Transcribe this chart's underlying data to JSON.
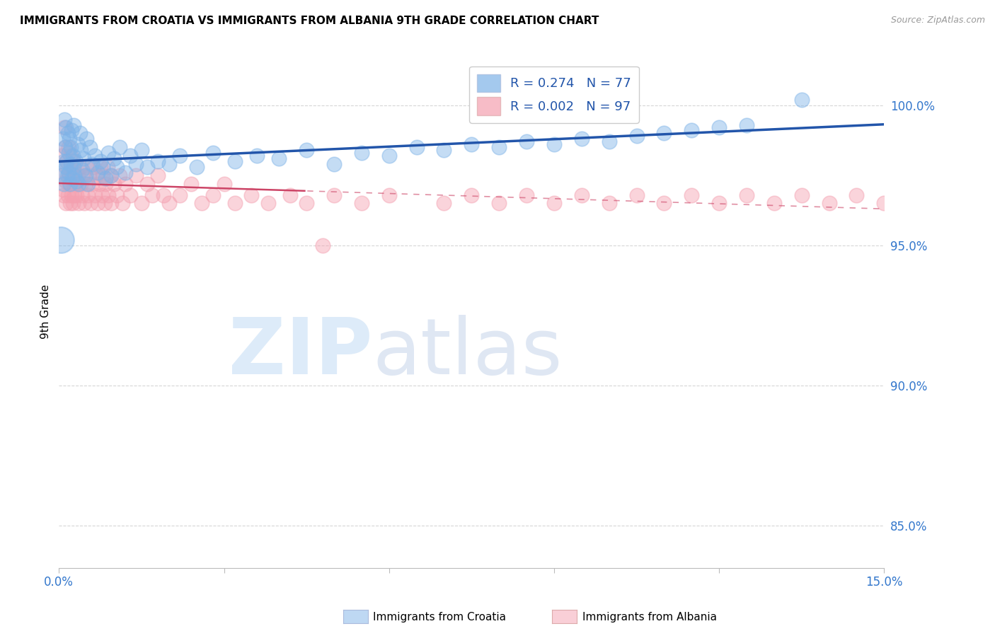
{
  "title": "IMMIGRANTS FROM CROATIA VS IMMIGRANTS FROM ALBANIA 9TH GRADE CORRELATION CHART",
  "source": "Source: ZipAtlas.com",
  "ylabel": "9th Grade",
  "xlim": [
    0.0,
    15.0
  ],
  "ylim": [
    83.5,
    101.8
  ],
  "croatia_R": 0.274,
  "croatia_N": 77,
  "albania_R": 0.002,
  "albania_N": 97,
  "croatia_color": "#7EB3E8",
  "albania_color": "#F4A0B0",
  "trendline_croatia_color": "#2255AA",
  "trendline_albania_color": "#CC4466",
  "grid_color": "#CCCCCC",
  "legend_label_croatia": "Immigrants from Croatia",
  "legend_label_albania": "Immigrants from Albania",
  "y_ticks": [
    85,
    90,
    95,
    100
  ],
  "y_tick_labels": [
    "85.0%",
    "90.0%",
    "95.0%",
    "100.0%"
  ],
  "croatia_x": [
    0.04,
    0.07,
    0.08,
    0.09,
    0.1,
    0.11,
    0.12,
    0.13,
    0.14,
    0.15,
    0.16,
    0.17,
    0.18,
    0.19,
    0.2,
    0.21,
    0.22,
    0.23,
    0.24,
    0.25,
    0.26,
    0.27,
    0.28,
    0.3,
    0.32,
    0.34,
    0.36,
    0.38,
    0.4,
    0.42,
    0.45,
    0.48,
    0.5,
    0.53,
    0.56,
    0.6,
    0.65,
    0.7,
    0.75,
    0.8,
    0.85,
    0.9,
    0.95,
    1.0,
    1.05,
    1.1,
    1.2,
    1.3,
    1.4,
    1.5,
    1.6,
    1.8,
    2.0,
    2.2,
    2.5,
    2.8,
    3.2,
    3.6,
    4.0,
    4.5,
    5.0,
    5.5,
    6.0,
    6.5,
    7.0,
    7.5,
    8.0,
    8.5,
    9.0,
    9.5,
    10.0,
    10.5,
    11.0,
    11.5,
    12.0,
    12.5,
    13.5
  ],
  "croatia_y": [
    97.5,
    98.8,
    97.2,
    98.0,
    99.5,
    98.5,
    97.8,
    99.2,
    98.0,
    97.5,
    99.0,
    98.3,
    97.6,
    98.8,
    97.2,
    98.5,
    97.9,
    99.1,
    97.4,
    98.2,
    97.8,
    99.3,
    97.5,
    98.0,
    97.3,
    98.6,
    97.2,
    99.0,
    98.4,
    97.7,
    98.1,
    97.5,
    98.8,
    97.2,
    98.5,
    97.9,
    98.2,
    97.6,
    98.0,
    97.8,
    97.4,
    98.3,
    97.5,
    98.1,
    97.8,
    98.5,
    97.6,
    98.2,
    97.9,
    98.4,
    97.8,
    98.0,
    97.9,
    98.2,
    97.8,
    98.3,
    98.0,
    98.2,
    98.1,
    98.4,
    97.9,
    98.3,
    98.2,
    98.5,
    98.4,
    98.6,
    98.5,
    98.7,
    98.6,
    98.8,
    98.7,
    98.9,
    99.0,
    99.1,
    99.2,
    99.3,
    100.2
  ],
  "albania_x": [
    0.03,
    0.05,
    0.07,
    0.09,
    0.1,
    0.11,
    0.12,
    0.13,
    0.14,
    0.15,
    0.16,
    0.17,
    0.18,
    0.19,
    0.2,
    0.21,
    0.22,
    0.23,
    0.24,
    0.25,
    0.26,
    0.27,
    0.28,
    0.29,
    0.3,
    0.32,
    0.34,
    0.36,
    0.38,
    0.4,
    0.42,
    0.44,
    0.46,
    0.48,
    0.5,
    0.52,
    0.55,
    0.58,
    0.6,
    0.63,
    0.65,
    0.68,
    0.7,
    0.73,
    0.75,
    0.78,
    0.8,
    0.83,
    0.85,
    0.88,
    0.9,
    0.93,
    0.95,
    1.0,
    1.05,
    1.1,
    1.15,
    1.2,
    1.3,
    1.4,
    1.5,
    1.6,
    1.7,
    1.8,
    1.9,
    2.0,
    2.2,
    2.4,
    2.6,
    2.8,
    3.0,
    3.2,
    3.5,
    3.8,
    4.2,
    4.5,
    5.0,
    5.5,
    6.0,
    7.0,
    7.5,
    8.0,
    8.5,
    9.0,
    9.5,
    10.0,
    10.5,
    11.0,
    11.5,
    12.0,
    12.5,
    13.0,
    13.5,
    14.0,
    14.5,
    15.0,
    4.8
  ],
  "albania_y": [
    97.5,
    98.2,
    97.0,
    96.8,
    99.2,
    98.5,
    97.3,
    96.5,
    98.0,
    97.8,
    96.8,
    97.5,
    98.5,
    97.2,
    96.5,
    97.8,
    98.2,
    96.8,
    97.5,
    96.5,
    97.2,
    98.0,
    96.8,
    97.5,
    97.2,
    96.8,
    97.5,
    96.5,
    97.8,
    97.2,
    96.8,
    97.5,
    96.5,
    97.2,
    97.8,
    96.8,
    97.5,
    96.5,
    97.2,
    97.8,
    96.8,
    97.5,
    96.5,
    97.2,
    97.8,
    96.8,
    97.5,
    96.5,
    97.2,
    97.8,
    96.8,
    97.5,
    96.5,
    97.2,
    96.8,
    97.5,
    96.5,
    97.2,
    96.8,
    97.5,
    96.5,
    97.2,
    96.8,
    97.5,
    96.8,
    96.5,
    96.8,
    97.2,
    96.5,
    96.8,
    97.2,
    96.5,
    96.8,
    96.5,
    96.8,
    96.5,
    96.8,
    96.5,
    96.8,
    96.5,
    96.8,
    96.5,
    96.8,
    96.5,
    96.8,
    96.5,
    96.8,
    96.5,
    96.8,
    96.5,
    96.8,
    96.5,
    96.8,
    96.5,
    96.8,
    96.5,
    95.0
  ]
}
